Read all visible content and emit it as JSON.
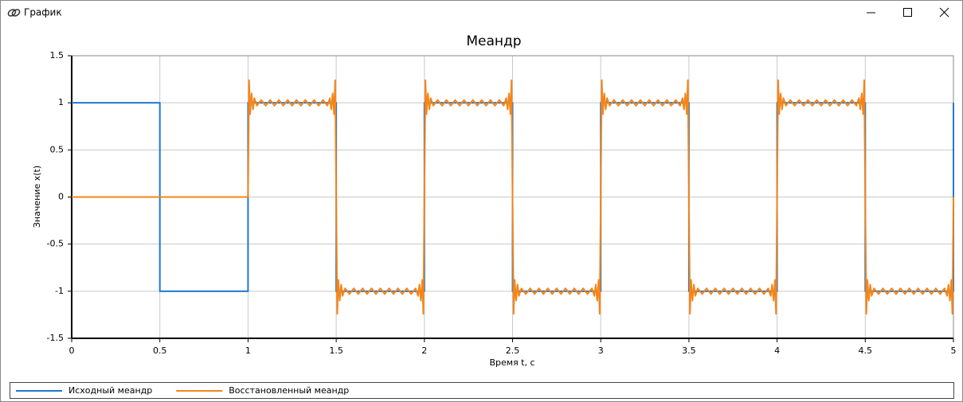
{
  "window": {
    "title": "График"
  },
  "chart_data": {
    "type": "line",
    "title": "Меандр",
    "x_label": "Время t, с",
    "y_label": "Значение x(t)",
    "xlim": [
      0,
      5
    ],
    "xticks": [
      0,
      0.5,
      1,
      1.5,
      2,
      2.5,
      3,
      3.5,
      4,
      4.5,
      5
    ],
    "ylim": [
      -1.5,
      1.5
    ],
    "yticks": [
      -1.5,
      -1,
      -0.5,
      0,
      0.5,
      1,
      1.5
    ],
    "grid": true,
    "legend": "bottom",
    "series": [
      {
        "name": "Исходный меандр",
        "color": "#1f78d1",
        "x": [
          0,
          0.5,
          0.5,
          1,
          1,
          1.5,
          1.5,
          2,
          2,
          2.5,
          2.5,
          3,
          3,
          3.5,
          3.5,
          4,
          4,
          4.5,
          4.5,
          5,
          5
        ],
        "values": [
          1,
          1,
          -1,
          -1,
          1,
          1,
          -1,
          -1,
          1,
          1,
          -1,
          -1,
          1,
          1,
          -1,
          -1,
          1,
          1,
          -1,
          -1,
          1
        ]
      },
      {
        "name": "Восстановленный меандр",
        "color": "#f58518",
        "x": [
          0,
          1,
          1.006,
          1.012,
          1.02,
          1.028,
          1.036,
          1.05,
          1.075,
          1.1,
          1.125,
          1.15,
          1.175,
          1.2,
          1.225,
          1.25,
          1.275,
          1.3,
          1.325,
          1.35,
          1.375,
          1.4,
          1.425,
          1.45,
          1.464,
          1.472,
          1.48,
          1.488,
          1.494,
          1.5,
          1.506,
          1.512,
          1.52,
          1.528,
          1.536,
          1.55,
          1.575,
          1.6,
          1.625,
          1.65,
          1.675,
          1.7,
          1.725,
          1.75,
          1.775,
          1.8,
          1.825,
          1.85,
          1.875,
          1.9,
          1.925,
          1.95,
          1.964,
          1.972,
          1.98,
          1.988,
          1.994,
          2,
          2.006,
          2.012,
          2.02,
          2.028,
          2.036,
          2.05,
          2.075,
          2.1,
          2.125,
          2.15,
          2.175,
          2.2,
          2.225,
          2.25,
          2.275,
          2.3,
          2.325,
          2.35,
          2.375,
          2.4,
          2.425,
          2.45,
          2.464,
          2.472,
          2.48,
          2.488,
          2.494,
          2.5,
          2.506,
          2.512,
          2.52,
          2.528,
          2.536,
          2.55,
          2.575,
          2.6,
          2.625,
          2.65,
          2.675,
          2.7,
          2.725,
          2.75,
          2.775,
          2.8,
          2.825,
          2.85,
          2.875,
          2.9,
          2.925,
          2.95,
          2.964,
          2.972,
          2.98,
          2.988,
          2.994,
          3,
          3.006,
          3.012,
          3.02,
          3.028,
          3.036,
          3.05,
          3.075,
          3.1,
          3.125,
          3.15,
          3.175,
          3.2,
          3.225,
          3.25,
          3.275,
          3.3,
          3.325,
          3.35,
          3.375,
          3.4,
          3.425,
          3.45,
          3.464,
          3.472,
          3.48,
          3.488,
          3.494,
          3.5,
          3.506,
          3.512,
          3.52,
          3.528,
          3.536,
          3.55,
          3.575,
          3.6,
          3.625,
          3.65,
          3.675,
          3.7,
          3.725,
          3.75,
          3.775,
          3.8,
          3.825,
          3.85,
          3.875,
          3.9,
          3.925,
          3.95,
          3.964,
          3.972,
          3.98,
          3.988,
          3.994,
          4,
          4.006,
          4.012,
          4.02,
          4.028,
          4.036,
          4.05,
          4.075,
          4.1,
          4.125,
          4.15,
          4.175,
          4.2,
          4.225,
          4.25,
          4.275,
          4.3,
          4.325,
          4.35,
          4.375,
          4.4,
          4.425,
          4.45,
          4.464,
          4.472,
          4.48,
          4.488,
          4.494,
          4.5,
          4.506,
          4.512,
          4.52,
          4.528,
          4.536,
          4.55,
          4.575,
          4.6,
          4.625,
          4.65,
          4.675,
          4.7,
          4.725,
          4.75,
          4.775,
          4.8,
          4.825,
          4.85,
          4.875,
          4.9,
          4.925,
          4.95,
          4.964,
          4.972,
          4.98,
          4.988,
          4.994,
          5
        ],
        "values": [
          0,
          0,
          1.24,
          0.88,
          1.1,
          0.93,
          1.05,
          0.97,
          1.03,
          0.97,
          1.03,
          0.97,
          1.03,
          0.97,
          1.03,
          0.97,
          1.03,
          0.97,
          1.03,
          0.97,
          1.03,
          0.97,
          1.03,
          0.97,
          1.05,
          0.93,
          1.1,
          0.88,
          1.24,
          0,
          -1.24,
          -0.88,
          -1.1,
          -0.93,
          -1.05,
          -0.97,
          -1.03,
          -0.97,
          -1.03,
          -0.97,
          -1.03,
          -0.97,
          -1.03,
          -0.97,
          -1.03,
          -0.97,
          -1.03,
          -0.97,
          -1.03,
          -0.97,
          -1.03,
          -0.97,
          -1.05,
          -0.93,
          -1.1,
          -0.88,
          -1.24,
          0,
          1.24,
          0.88,
          1.1,
          0.93,
          1.05,
          0.97,
          1.03,
          0.97,
          1.03,
          0.97,
          1.03,
          0.97,
          1.03,
          0.97,
          1.03,
          0.97,
          1.03,
          0.97,
          1.03,
          0.97,
          1.03,
          0.97,
          1.05,
          0.93,
          1.1,
          0.88,
          1.24,
          0,
          -1.24,
          -0.88,
          -1.1,
          -0.93,
          -1.05,
          -0.97,
          -1.03,
          -0.97,
          -1.03,
          -0.97,
          -1.03,
          -0.97,
          -1.03,
          -0.97,
          -1.03,
          -0.97,
          -1.03,
          -0.97,
          -1.03,
          -0.97,
          -1.03,
          -0.97,
          -1.05,
          -0.93,
          -1.1,
          -0.88,
          -1.24,
          0,
          1.24,
          0.88,
          1.1,
          0.93,
          1.05,
          0.97,
          1.03,
          0.97,
          1.03,
          0.97,
          1.03,
          0.97,
          1.03,
          0.97,
          1.03,
          0.97,
          1.03,
          0.97,
          1.03,
          0.97,
          1.03,
          0.97,
          1.05,
          0.93,
          1.1,
          0.88,
          1.24,
          0,
          -1.24,
          -0.88,
          -1.1,
          -0.93,
          -1.05,
          -0.97,
          -1.03,
          -0.97,
          -1.03,
          -0.97,
          -1.03,
          -0.97,
          -1.03,
          -0.97,
          -1.03,
          -0.97,
          -1.03,
          -0.97,
          -1.03,
          -0.97,
          -1.03,
          -0.97,
          -1.05,
          -0.93,
          -1.1,
          -0.88,
          -1.24,
          0,
          1.24,
          0.88,
          1.1,
          0.93,
          1.05,
          0.97,
          1.03,
          0.97,
          1.03,
          0.97,
          1.03,
          0.97,
          1.03,
          0.97,
          1.03,
          0.97,
          1.03,
          0.97,
          1.03,
          0.97,
          1.03,
          0.97,
          1.05,
          0.93,
          1.1,
          0.88,
          1.24,
          0,
          -1.24,
          -0.88,
          -1.1,
          -0.93,
          -1.05,
          -0.97,
          -1.03,
          -0.97,
          -1.03,
          -0.97,
          -1.03,
          -0.97,
          -1.03,
          -0.97,
          -1.03,
          -0.97,
          -1.03,
          -0.97,
          -1.03,
          -0.97,
          -1.03,
          -0.97,
          -1.05,
          -0.93,
          -1.1,
          -0.88,
          -1.24,
          0
        ]
      }
    ]
  }
}
